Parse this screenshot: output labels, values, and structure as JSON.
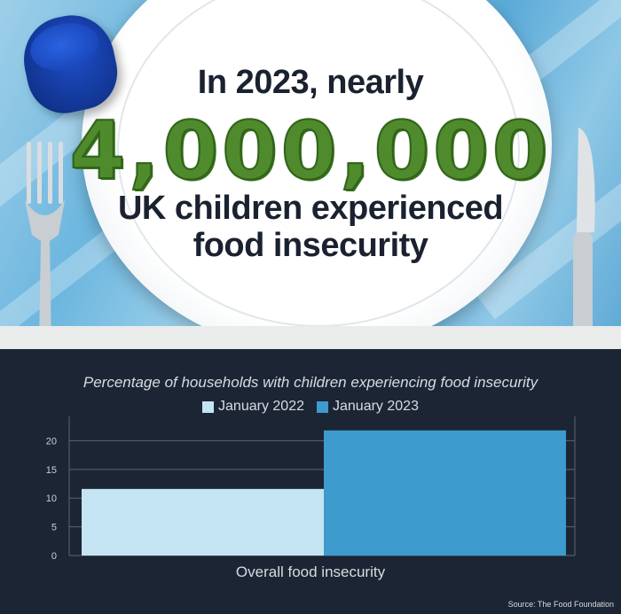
{
  "headline": {
    "line1": "In 2023, nearly",
    "number": "4,000,000",
    "line3": "UK children experienced",
    "line4": "food insecurity"
  },
  "colors": {
    "series_2022": "#c4e4f3",
    "series_2023": "#3d9bcd",
    "background": "#1c2533"
  },
  "chart_data": {
    "type": "bar",
    "title": "Percentage of households with children experiencing food insecurity",
    "categories": [
      "Overall food insecurity"
    ],
    "series": [
      {
        "name": "January 2022",
        "values": [
          11.6
        ]
      },
      {
        "name": "January 2023",
        "values": [
          21.8
        ]
      }
    ],
    "xlabel": "Overall food insecurity",
    "ylabel": "",
    "ylim": [
      0,
      23
    ],
    "yticks": [
      0,
      5,
      10,
      15,
      20
    ],
    "grid": true,
    "legend_position": "top-center"
  },
  "source": "Source: The Food Foundation"
}
